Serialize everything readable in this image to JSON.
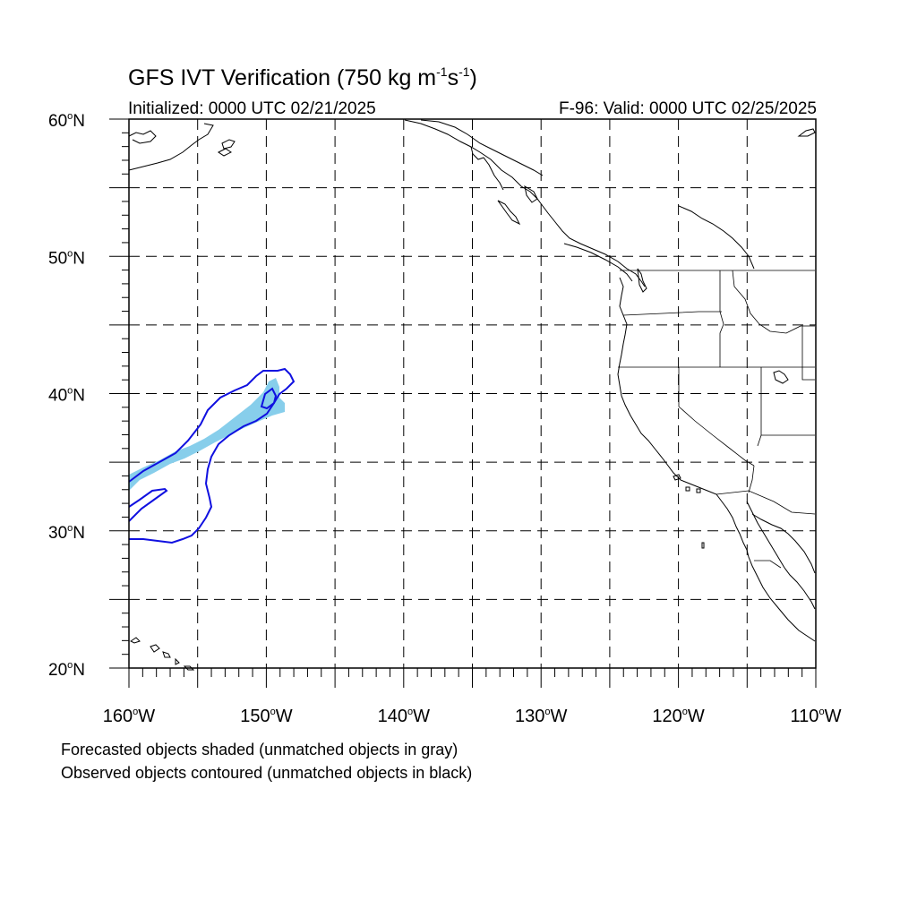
{
  "title": {
    "main": "GFS IVT Verification (750 kg m",
    "exp1": "-1",
    "mid": "s",
    "exp2": "-1",
    "end": ")"
  },
  "initialized": "Initialized: 0000 UTC 02/21/2025",
  "valid": "F-96: Valid: 0000 UTC 02/25/2025",
  "captions": {
    "forecast": "Forecasted objects shaded (unmatched objects in gray)",
    "observed": "Observed objects contoured (unmatched objects in black)"
  },
  "map": {
    "lon_range": [
      -160,
      -110
    ],
    "lat_range": [
      20,
      60
    ],
    "grid_lons": [
      -155,
      -150,
      -145,
      -140,
      -135,
      -130,
      -125,
      -120,
      -115
    ],
    "grid_lats": [
      25,
      30,
      35,
      40,
      45,
      50,
      55
    ],
    "lat_labels": [
      {
        "lat": 60,
        "text": "60",
        "hem": "N"
      },
      {
        "lat": 50,
        "text": "50",
        "hem": "N"
      },
      {
        "lat": 40,
        "text": "40",
        "hem": "N"
      },
      {
        "lat": 30,
        "text": "30",
        "hem": "N"
      },
      {
        "lat": 20,
        "text": "20",
        "hem": "N"
      }
    ],
    "lon_labels": [
      {
        "lon": -160,
        "text": "160",
        "hem": "W"
      },
      {
        "lon": -150,
        "text": "150",
        "hem": "W"
      },
      {
        "lon": -140,
        "text": "140",
        "hem": "W"
      },
      {
        "lon": -130,
        "text": "130",
        "hem": "W"
      },
      {
        "lon": -120,
        "text": "120",
        "hem": "W"
      },
      {
        "lon": -110,
        "text": "110",
        "hem": "W"
      }
    ],
    "degree_symbol": "o",
    "colors": {
      "forecast_fill": "#87CEEB",
      "observed_contour": "#1010E0",
      "coastline": "#000000",
      "grid": "#000000"
    }
  }
}
